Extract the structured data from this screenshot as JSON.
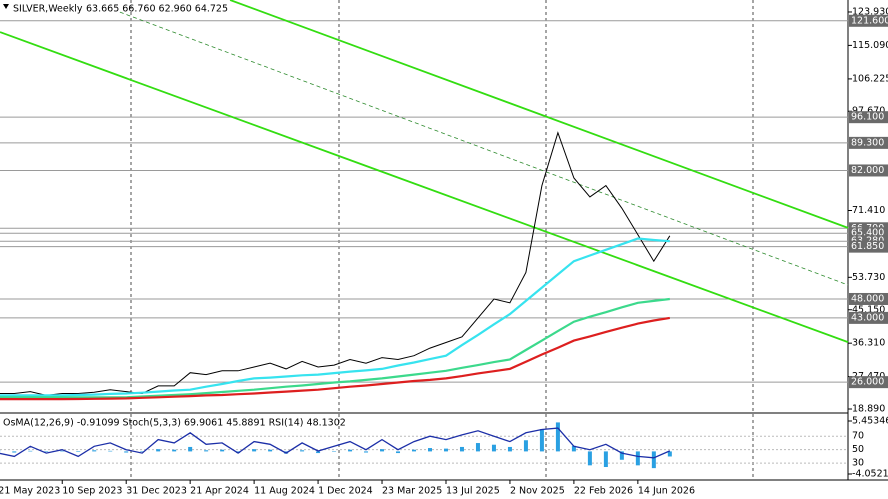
{
  "chart_data": [
    {
      "type": "line",
      "title": "SILVER,Weekly",
      "subtitle": "63.665 66.760 62.960 64.725",
      "x": [
        "2023-05-21",
        "2023-06-18",
        "2023-07-16",
        "2023-08-13",
        "2023-09-10",
        "2023-10-08",
        "2023-11-05",
        "2023-12-03",
        "2023-12-31",
        "2024-01-28",
        "2024-02-25",
        "2024-03-24",
        "2024-04-21",
        "2024-05-19",
        "2024-06-16",
        "2024-07-14",
        "2024-08-11",
        "2024-09-08",
        "2024-10-06",
        "2024-11-03",
        "2024-12-01",
        "2024-12-29",
        "2025-01-26",
        "2025-02-23",
        "2025-03-23",
        "2025-04-20",
        "2025-05-18",
        "2025-06-15",
        "2025-07-13",
        "2025-08-10",
        "2025-09-07",
        "2025-10-05",
        "2025-11-02",
        "2025-11-30",
        "2025-12-28",
        "2026-01-25",
        "2026-02-22",
        "2026-03-22",
        "2026-04-19",
        "2026-05-17",
        "2026-06-14",
        "2026-07-12",
        "2026-08-09"
      ],
      "series": [
        {
          "color": "#000000",
          "values": [
            23,
            23,
            23.5,
            22.5,
            23,
            23,
            23.3,
            24,
            23.5,
            23,
            25,
            25,
            28.5,
            28,
            29,
            29,
            30,
            31,
            29.5,
            31.5,
            30,
            30.5,
            32,
            31,
            32.5,
            32,
            33,
            35,
            36.5,
            38,
            43,
            48,
            47,
            55,
            78,
            92,
            80,
            75,
            78,
            72,
            65,
            58,
            64.725
          ]
        },
        {
          "color": "#37e3ef",
          "values": [
            22.5,
            22.5,
            22.5,
            22.5,
            22.5,
            22.6,
            22.7,
            22.9,
            23,
            23.2,
            23.5,
            23.8,
            24,
            24.8,
            25.5,
            26.3,
            27,
            27.2,
            27.5,
            27.8,
            28,
            28.4,
            28.8,
            29.1,
            29.5,
            30.4,
            31.2,
            32.1,
            33,
            35.8,
            38.5,
            41.3,
            44,
            47.5,
            51,
            54.5,
            58,
            59.5,
            61,
            62.5,
            64,
            63.6,
            63.3
          ]
        },
        {
          "color": "#3cd98c",
          "values": [
            22,
            22,
            22,
            22,
            22,
            22,
            22,
            22,
            22,
            22.2,
            22.4,
            22.6,
            22.8,
            23.1,
            23.4,
            23.7,
            24,
            24.4,
            24.8,
            25.1,
            25.5,
            25.9,
            26.2,
            26.6,
            27,
            27.5,
            28,
            28.5,
            29,
            29.8,
            30.5,
            31.3,
            32,
            34.5,
            37,
            39.5,
            42,
            43.3,
            44.5,
            45.8,
            47,
            47.5,
            48
          ]
        },
        {
          "color": "#dd1f1f",
          "values": [
            21.5,
            21.5,
            21.5,
            21.5,
            21.5,
            21.55,
            21.6,
            21.65,
            21.7,
            21.85,
            22,
            22.15,
            22.3,
            22.5,
            22.6,
            22.8,
            23,
            23.25,
            23.5,
            23.75,
            24,
            24.4,
            24.8,
            25.1,
            25.5,
            25.9,
            26.3,
            26.6,
            27,
            27.6,
            28.3,
            28.9,
            29.5,
            31.4,
            33.3,
            35.1,
            37,
            38.1,
            39.3,
            40.4,
            41.5,
            42.3,
            43
          ]
        }
      ],
      "xlim": [
        "2023-05-24",
        "2027-06-17"
      ],
      "xticks": [
        {
          "value": "2023-05-21",
          "label": "21 May 2023"
        },
        {
          "value": "2023-09-10",
          "label": "10 Sep 2023"
        },
        {
          "value": "2023-12-31",
          "label": "31 Dec 2023"
        },
        {
          "value": "2024-04-21",
          "label": "21 Apr 2024"
        },
        {
          "value": "2024-08-11",
          "label": "11 Aug 2024"
        },
        {
          "value": "2024-12-01",
          "label": "1 Dec 2024"
        },
        {
          "value": "2025-03-23",
          "label": "23 Mar 2025"
        },
        {
          "value": "2025-07-13",
          "label": "13 Jul 2025"
        },
        {
          "value": "2025-11-02",
          "label": "2 Nov 2025"
        },
        {
          "value": "2026-02-22",
          "label": "22 Feb 2026"
        },
        {
          "value": "2026-06-14",
          "label": "14 Jun 2026"
        }
      ],
      "ylim": [
        18.1,
        127.1
      ],
      "yticks": [
        {
          "value": 123.93,
          "label": "123.930"
        },
        {
          "value": 115.09,
          "label": "115.090"
        },
        {
          "value": 106.225,
          "label": "106.225"
        },
        {
          "value": 97.67,
          "label": "97.670"
        },
        {
          "value": 71.41,
          "label": "71.410"
        },
        {
          "value": 53.73,
          "label": "53.730"
        },
        {
          "value": 45.15,
          "label": "45.150"
        },
        {
          "value": 36.31,
          "label": "36.310"
        },
        {
          "value": 27.47,
          "label": "27.470"
        },
        {
          "value": 18.89,
          "label": "18.890"
        }
      ],
      "levels": [
        {
          "value": 121.6,
          "label": "121.600"
        },
        {
          "value": 96.1,
          "label": "96.100"
        },
        {
          "value": 89.3,
          "label": "89.300"
        },
        {
          "value": 82,
          "label": "82.000"
        },
        {
          "value": 66.7,
          "label": "66.700"
        },
        {
          "value": 65.4,
          "label": "65.400"
        },
        {
          "value": 63.28,
          "label": "63.280"
        },
        {
          "value": 61.85,
          "label": "61.850"
        },
        {
          "value": 48,
          "label": "48.000"
        },
        {
          "value": 43,
          "label": "43.000"
        },
        {
          "value": 26,
          "label": "26.000"
        }
      ],
      "trendlines": [
        {
          "color": "#33dd11",
          "x": [
            "2024-06-30",
            "2027-06-17"
          ],
          "y": [
            127.1,
            66.8
          ]
        },
        {
          "color": "#33dd11",
          "x": [
            "2023-05-24",
            "2027-06-17"
          ],
          "y": [
            118.6,
            36.6
          ]
        },
        {
          "color": "#2e8b2e",
          "x": [
            "2023-12-20",
            "2027-06-17"
          ],
          "y": [
            123.9,
            51.7
          ]
        }
      ]
    },
    {
      "type": "bar",
      "title": "OsMA(12,26,9) -0.91099 Stoch(5,3,3) 69.9061 45.8891 RSI(14) 48.1302",
      "x": [
        "2023-05-21",
        "2023-06-18",
        "2023-07-16",
        "2023-08-13",
        "2023-09-10",
        "2023-10-08",
        "2023-11-05",
        "2023-12-03",
        "2023-12-31",
        "2024-01-28",
        "2024-02-25",
        "2024-03-24",
        "2024-04-21",
        "2024-05-19",
        "2024-06-16",
        "2024-07-14",
        "2024-08-11",
        "2024-09-08",
        "2024-10-06",
        "2024-11-03",
        "2024-12-01",
        "2024-12-29",
        "2025-01-26",
        "2025-02-23",
        "2025-03-23",
        "2025-04-20",
        "2025-05-18",
        "2025-06-15",
        "2025-07-13",
        "2025-08-10",
        "2025-09-07",
        "2025-10-05",
        "2025-11-02",
        "2025-11-30",
        "2025-12-28",
        "2026-01-25",
        "2026-02-22",
        "2026-03-22",
        "2026-04-19",
        "2026-05-17",
        "2026-06-14",
        "2026-07-12",
        "2026-08-09"
      ],
      "series": [
        {
          "color": "#2aa0e2",
          "values": [
            0.2,
            -0.2,
            0.1,
            -0.1,
            0.1,
            -0.1,
            0.2,
            0.1,
            -0.2,
            -0.1,
            0.4,
            0.3,
            0.8,
            0.2,
            0.3,
            -0.3,
            0.4,
            0.3,
            -0.4,
            0.2,
            -0.3,
            0,
            0.3,
            -0.2,
            0.4,
            -0.3,
            0.3,
            0.6,
            0.5,
            0.8,
            1.5,
            1.2,
            0.8,
            2,
            4,
            5.2,
            1,
            -2.5,
            -2.8,
            -1.5,
            -2.5,
            -3,
            -0.91099
          ]
        },
        {
          "color": "#1c2fa8",
          "axis": "y2",
          "values": [
            45,
            40,
            55,
            45,
            50,
            40,
            55,
            60,
            50,
            45,
            65,
            60,
            75,
            58,
            60,
            45,
            62,
            58,
            45,
            60,
            48,
            55,
            62,
            50,
            65,
            50,
            62,
            70,
            65,
            72,
            78,
            70,
            62,
            75,
            80,
            82,
            55,
            50,
            58,
            45,
            40,
            38,
            48.1302
          ]
        }
      ],
      "xlim": [
        "2023-05-24",
        "2027-06-17"
      ],
      "ylim": [
        -5.13,
        6.35
      ],
      "yticks": [
        5.45346,
        -4.0521
      ],
      "y2lim": [
        5,
        100
      ],
      "y2ticks": [
        70,
        50,
        30
      ]
    }
  ]
}
